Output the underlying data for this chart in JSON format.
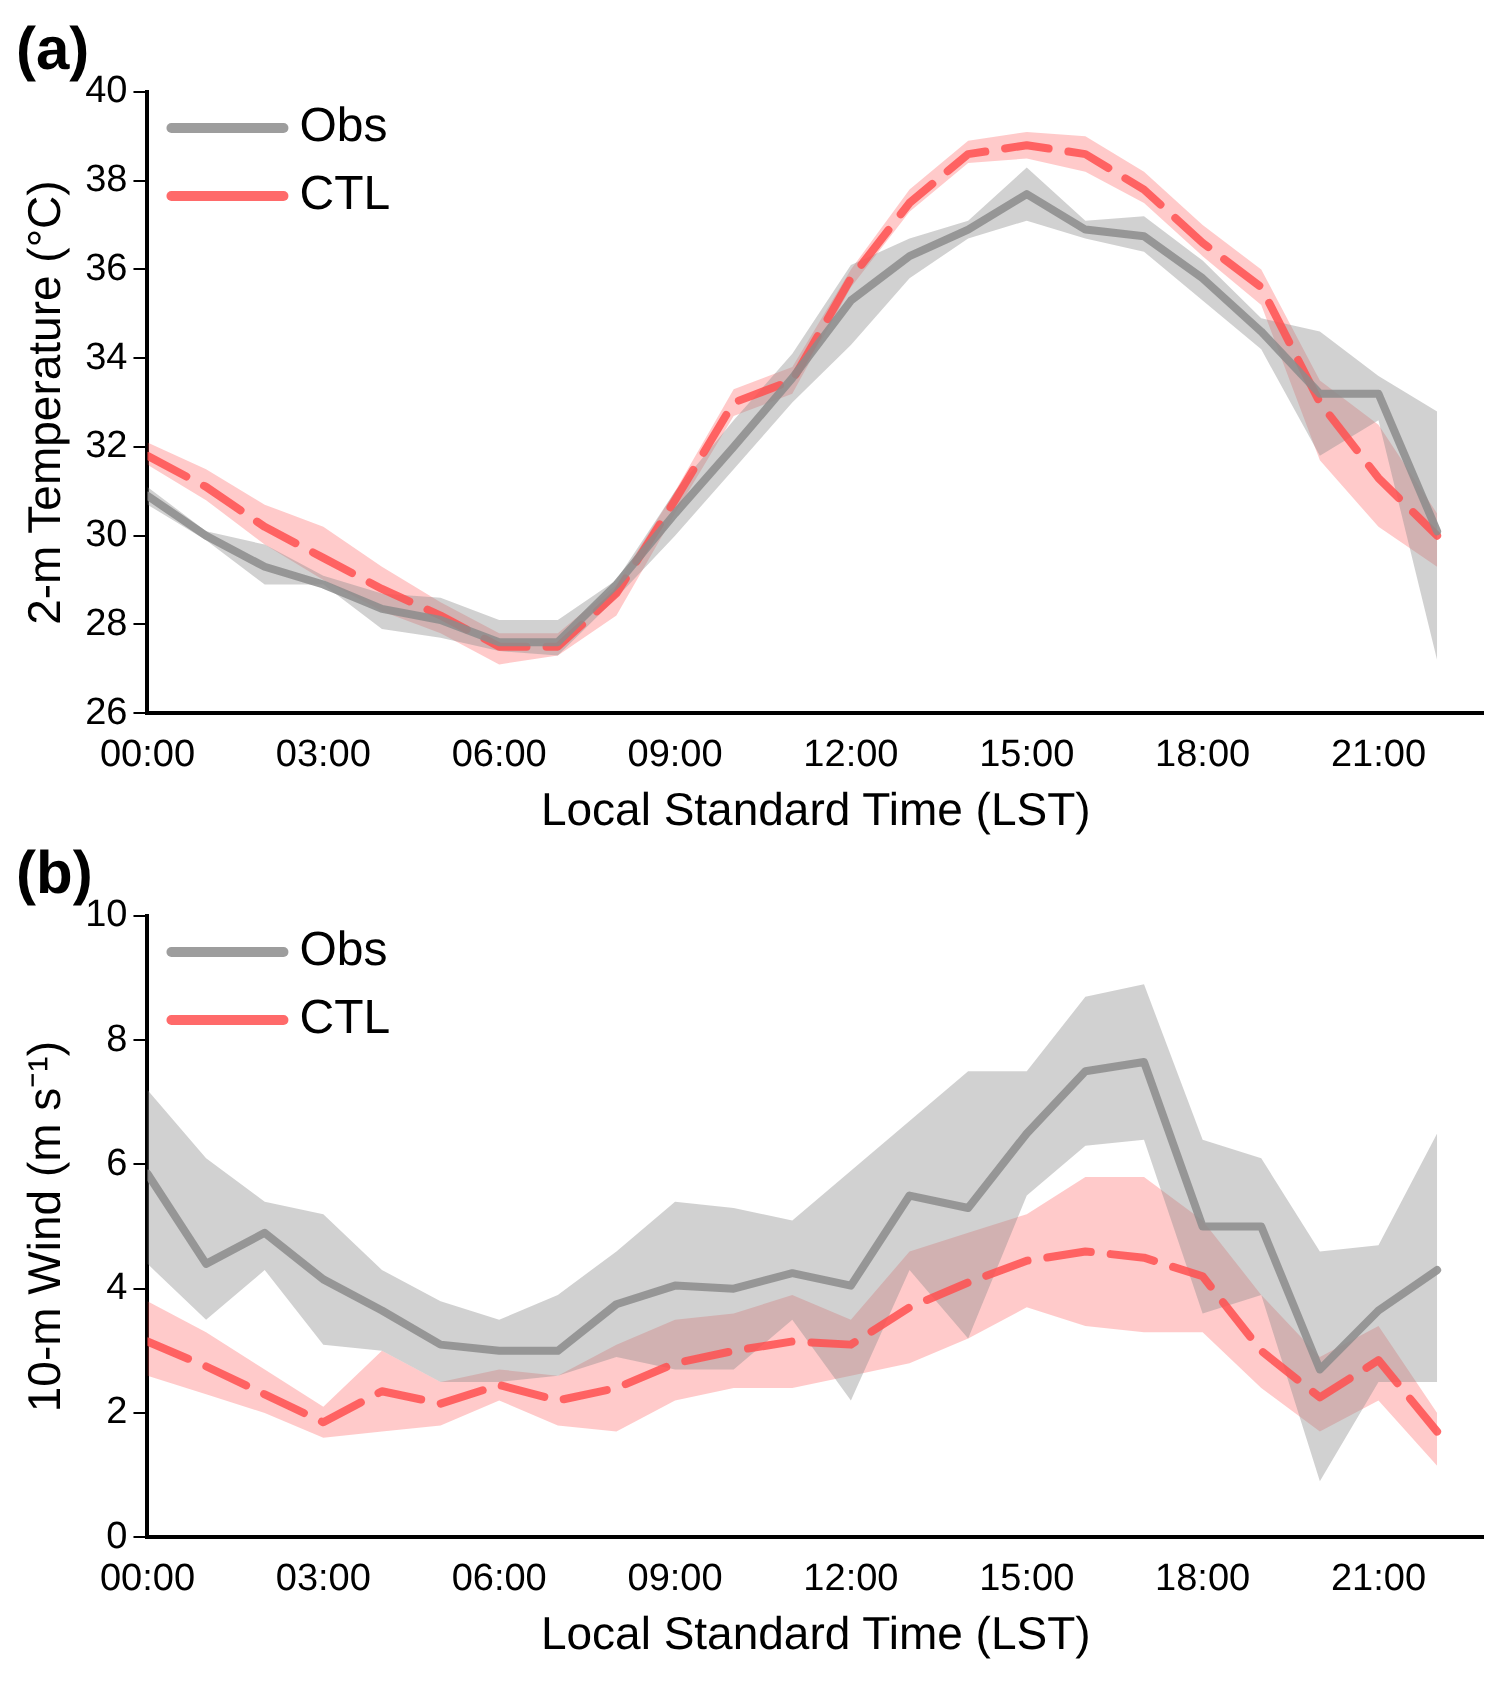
{
  "chart_data": [
    {
      "type": "line",
      "title": "(a)",
      "xlabel": "Local Standard Time (LST)",
      "ylabel": "2-m Temperature (°C)",
      "x": [
        0,
        1,
        2,
        3,
        4,
        5,
        6,
        7,
        8,
        9,
        10,
        11,
        12,
        13,
        14,
        15,
        16,
        17,
        18,
        19,
        20,
        21,
        22
      ],
      "xlim": [
        0,
        22.8
      ],
      "xticks": [
        {
          "value": 0,
          "label": "00:00"
        },
        {
          "value": 3,
          "label": "03:00"
        },
        {
          "value": 6,
          "label": "06:00"
        },
        {
          "value": 9,
          "label": "09:00"
        },
        {
          "value": 12,
          "label": "12:00"
        },
        {
          "value": 15,
          "label": "15:00"
        },
        {
          "value": 18,
          "label": "18:00"
        },
        {
          "value": 21,
          "label": "21:00"
        }
      ],
      "ylim": [
        26,
        40
      ],
      "yticks": [
        26,
        28,
        30,
        32,
        34,
        36,
        38,
        40
      ],
      "grid": false,
      "legend": "top left",
      "marker": "none",
      "series": [
        {
          "name": "Obs",
          "color": "#8c8c8c",
          "line_style": "solid",
          "values": [
            30.9,
            30.0,
            29.3,
            28.9,
            28.35,
            28.1,
            27.6,
            27.6,
            28.9,
            30.5,
            32.0,
            33.55,
            35.3,
            36.3,
            36.9,
            37.7,
            36.9,
            36.75,
            35.8,
            34.6,
            33.2,
            33.2,
            30.1
          ],
          "lower": [
            30.7,
            29.9,
            28.9,
            28.9,
            27.9,
            27.7,
            27.4,
            27.3,
            28.6,
            30.0,
            31.5,
            33.0,
            34.3,
            35.8,
            36.7,
            37.1,
            36.7,
            36.4,
            35.3,
            34.2,
            31.8,
            32.6,
            27.2
          ],
          "upper": [
            31.1,
            30.1,
            29.8,
            29.1,
            28.7,
            28.6,
            28.1,
            28.1,
            29.0,
            31.0,
            32.6,
            34.1,
            36.1,
            36.7,
            37.1,
            38.3,
            37.1,
            37.2,
            36.2,
            34.9,
            34.6,
            33.6,
            32.8
          ]
        },
        {
          "name": "CTL",
          "color": "#ff5050",
          "line_style": "dashed",
          "values": [
            31.8,
            31.1,
            30.2,
            29.5,
            28.8,
            28.2,
            27.5,
            27.5,
            28.7,
            30.8,
            33.0,
            33.5,
            35.8,
            37.5,
            38.6,
            38.8,
            38.6,
            37.8,
            36.6,
            35.6,
            33.0,
            31.3,
            30.0
          ],
          "lower": [
            31.6,
            30.8,
            29.8,
            29.0,
            28.3,
            27.8,
            27.1,
            27.3,
            28.2,
            30.5,
            32.7,
            33.2,
            35.6,
            37.3,
            38.4,
            38.5,
            38.2,
            37.5,
            36.3,
            35.2,
            31.7,
            30.2,
            29.3
          ],
          "upper": [
            32.1,
            31.5,
            30.7,
            30.2,
            29.3,
            28.5,
            27.8,
            27.8,
            28.9,
            31.0,
            33.3,
            33.8,
            36.0,
            37.8,
            38.9,
            39.1,
            39.0,
            38.2,
            37.0,
            36.0,
            33.5,
            32.5,
            30.5
          ]
        }
      ]
    },
    {
      "type": "line",
      "title": "(b)",
      "xlabel": "Local Standard Time (LST)",
      "ylabel": "10-m Wind (m s⁻¹)",
      "x": [
        0,
        1,
        2,
        3,
        4,
        5,
        6,
        7,
        8,
        9,
        10,
        11,
        12,
        13,
        14,
        15,
        16,
        17,
        18,
        19,
        20,
        21,
        22
      ],
      "xlim": [
        0,
        22.8
      ],
      "xticks": [
        {
          "value": 0,
          "label": "00:00"
        },
        {
          "value": 3,
          "label": "03:00"
        },
        {
          "value": 6,
          "label": "06:00"
        },
        {
          "value": 9,
          "label": "09:00"
        },
        {
          "value": 12,
          "label": "12:00"
        },
        {
          "value": 15,
          "label": "15:00"
        },
        {
          "value": 18,
          "label": "18:00"
        },
        {
          "value": 21,
          "label": "21:00"
        }
      ],
      "ylim": [
        0,
        10
      ],
      "yticks": [
        0,
        2,
        4,
        6,
        8,
        10
      ],
      "grid": false,
      "legend": "top left",
      "marker": "none",
      "series": [
        {
          "name": "Obs",
          "color": "#8c8c8c",
          "line_style": "solid",
          "values": [
            5.85,
            4.4,
            4.9,
            4.15,
            3.65,
            3.1,
            3.0,
            3.0,
            3.75,
            4.05,
            4.0,
            4.25,
            4.05,
            5.5,
            5.3,
            6.5,
            7.5,
            7.65,
            5.0,
            5.0,
            2.7,
            3.65,
            4.3
          ],
          "lower": [
            4.4,
            3.5,
            4.3,
            3.1,
            3.0,
            2.5,
            2.5,
            2.6,
            2.9,
            2.7,
            2.7,
            3.5,
            2.2,
            4.3,
            3.2,
            5.5,
            6.3,
            6.4,
            3.6,
            3.9,
            0.9,
            2.5,
            2.5
          ],
          "upper": [
            7.2,
            6.1,
            5.4,
            5.2,
            4.3,
            3.8,
            3.5,
            3.9,
            4.6,
            5.4,
            5.3,
            5.1,
            5.9,
            6.7,
            7.5,
            7.5,
            8.7,
            8.9,
            6.4,
            6.1,
            4.6,
            4.7,
            6.5
          ]
        },
        {
          "name": "CTL",
          "color": "#ff5050",
          "line_style": "dashed",
          "values": [
            3.15,
            2.75,
            2.3,
            1.85,
            2.35,
            2.15,
            2.45,
            2.2,
            2.4,
            2.8,
            3.0,
            3.15,
            3.1,
            3.7,
            4.1,
            4.45,
            4.6,
            4.5,
            4.2,
            3.0,
            2.25,
            2.85,
            1.7
          ],
          "lower": [
            2.6,
            2.3,
            2.0,
            1.6,
            1.7,
            1.8,
            2.2,
            1.8,
            1.7,
            2.2,
            2.4,
            2.4,
            2.6,
            2.8,
            3.2,
            3.7,
            3.4,
            3.3,
            3.3,
            2.4,
            1.7,
            2.2,
            1.15
          ],
          "upper": [
            3.8,
            3.3,
            2.7,
            2.1,
            3.0,
            2.5,
            2.7,
            2.6,
            3.1,
            3.5,
            3.6,
            3.9,
            3.5,
            4.6,
            4.9,
            5.2,
            5.8,
            5.8,
            5.1,
            3.9,
            2.9,
            3.4,
            2.0
          ]
        }
      ]
    }
  ]
}
